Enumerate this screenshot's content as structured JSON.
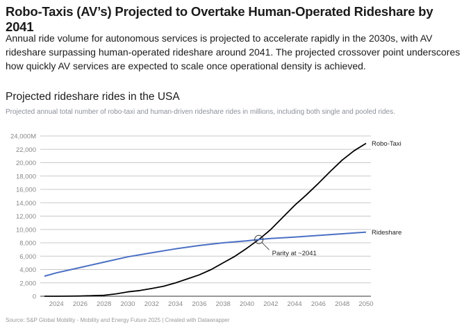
{
  "header": {
    "title": "Robo-Taxis (AV’s) Projected to Overtake Human-Operated Rideshare by 2041",
    "description": "Annual ride volume for autonomous services is projected to accelerate rapidly in the 2030s, with AV rideshare surpassing human-operated rideshare around 2041. The projected crossover point underscores how quickly AV services are expected to scale once operational density is achieved."
  },
  "chart_data": {
    "type": "line",
    "title": "Projected rideshare rides in the USA",
    "subtitle": "Projected annual total number of robo-taxi and human-driven rideshare rides in millions, including both single and pooled rides.",
    "xlabel": "",
    "ylabel": "",
    "xlim": [
      2023,
      2050
    ],
    "ylim": [
      0,
      24000
    ],
    "x_ticks": [
      2024,
      2026,
      2028,
      2030,
      2032,
      2034,
      2036,
      2038,
      2040,
      2042,
      2044,
      2046,
      2048,
      2050
    ],
    "y_ticks": [
      0,
      2000,
      4000,
      6000,
      8000,
      10000,
      12000,
      14000,
      16000,
      18000,
      20000,
      22000,
      24000
    ],
    "y_tick_labels": [
      "0",
      "2,000",
      "4,000",
      "6,000",
      "8,000",
      "10,000",
      "12,000",
      "14,000",
      "16,000",
      "18,000",
      "20,000",
      "22,000",
      "24,000M"
    ],
    "grid": true,
    "series": [
      {
        "name": "Robo-Taxi",
        "color": "#000000",
        "x": [
          2023,
          2024,
          2025,
          2026,
          2027,
          2028,
          2029,
          2030,
          2031,
          2032,
          2033,
          2034,
          2035,
          2036,
          2037,
          2038,
          2039,
          2040,
          2041,
          2042,
          2043,
          2044,
          2045,
          2046,
          2047,
          2048,
          2049,
          2050
        ],
        "values": [
          0,
          0,
          10,
          30,
          80,
          150,
          350,
          650,
          850,
          1150,
          1500,
          2000,
          2600,
          3200,
          4000,
          5000,
          6000,
          7200,
          8500,
          10000,
          11800,
          13600,
          15200,
          16900,
          18700,
          20400,
          21800,
          22900
        ]
      },
      {
        "name": "Rideshare",
        "color": "#4a6fc4",
        "x": [
          2023,
          2024,
          2026,
          2028,
          2030,
          2032,
          2034,
          2036,
          2038,
          2040,
          2041,
          2042,
          2044,
          2046,
          2048,
          2050
        ],
        "values": [
          3000,
          3500,
          4300,
          5100,
          5900,
          6500,
          7100,
          7600,
          8000,
          8300,
          8500,
          8650,
          8850,
          9100,
          9350,
          9600
        ]
      }
    ],
    "annotations": [
      {
        "text": "Parity at ~2041",
        "x": 2041,
        "y": 8500
      }
    ],
    "source": "Source: S&P Global Mobility - Mobility and Energy Future 2025 | Created with Datawrapper"
  }
}
